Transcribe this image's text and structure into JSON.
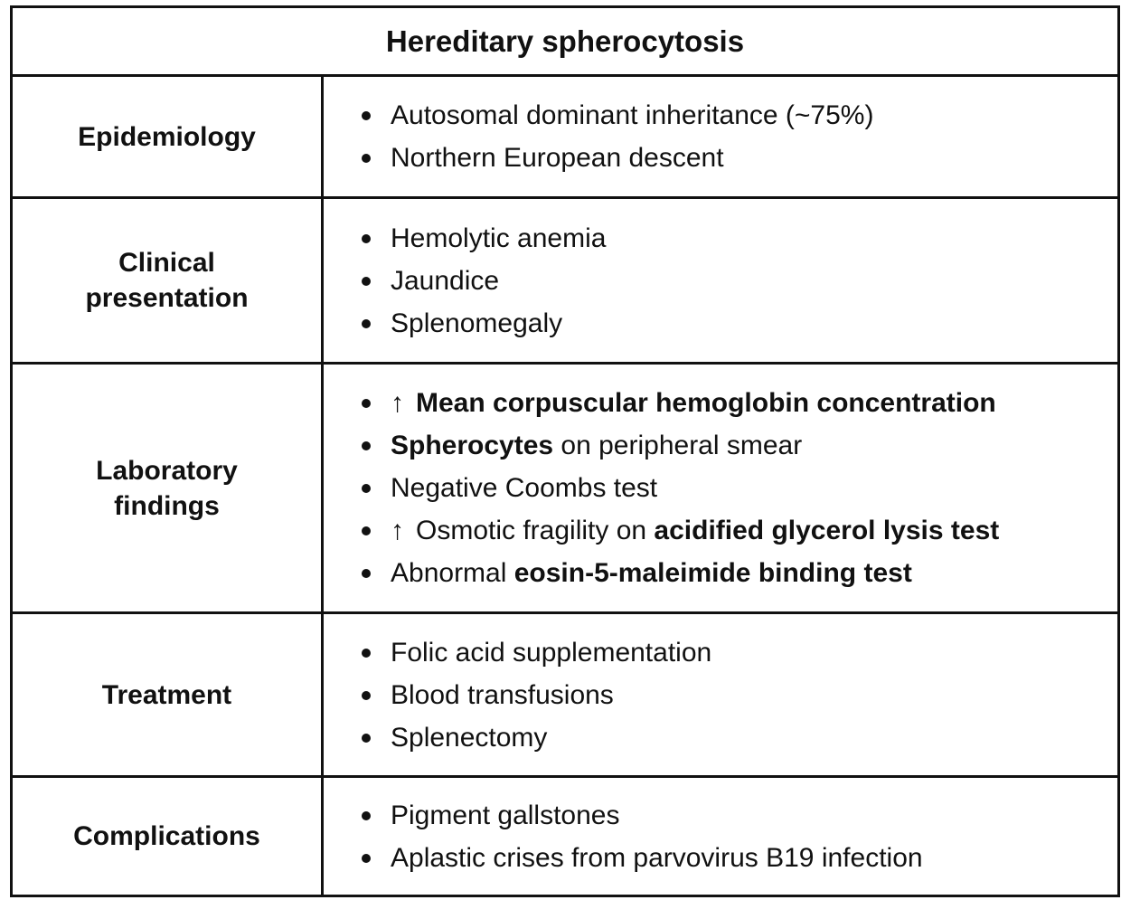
{
  "title": "Hereditary spherocytosis",
  "rows": [
    {
      "label": "Epidemiology",
      "items": [
        [
          "Autosomal dominant inheritance (~75%)"
        ],
        [
          "Northern European descent"
        ]
      ]
    },
    {
      "label": "Clinical presentation",
      "items": [
        [
          "Hemolytic anemia"
        ],
        [
          "Jaundice"
        ],
        [
          "Splenomegaly"
        ]
      ]
    },
    {
      "label": "Laboratory findings",
      "items": [
        [
          "Mean corpuscular hemoglobin concentration"
        ],
        [
          "Spherocytes",
          " on peripheral smear"
        ],
        [
          "Negative Coombs test"
        ],
        [
          "Osmotic fragility on ",
          "acidified glycerol lysis test"
        ],
        [
          "Abnormal ",
          "eosin-5-maleimide binding test"
        ]
      ]
    },
    {
      "label": "Treatment",
      "items": [
        [
          "Folic acid supplementation"
        ],
        [
          "Blood transfusions"
        ],
        [
          "Splenectomy"
        ]
      ]
    },
    {
      "label": "Complications",
      "items": [
        [
          "Pigment gallstones"
        ],
        [
          "Aplastic crises from parvovirus B19 infection"
        ]
      ]
    }
  ],
  "icons": {
    "up_arrow": "↑"
  }
}
